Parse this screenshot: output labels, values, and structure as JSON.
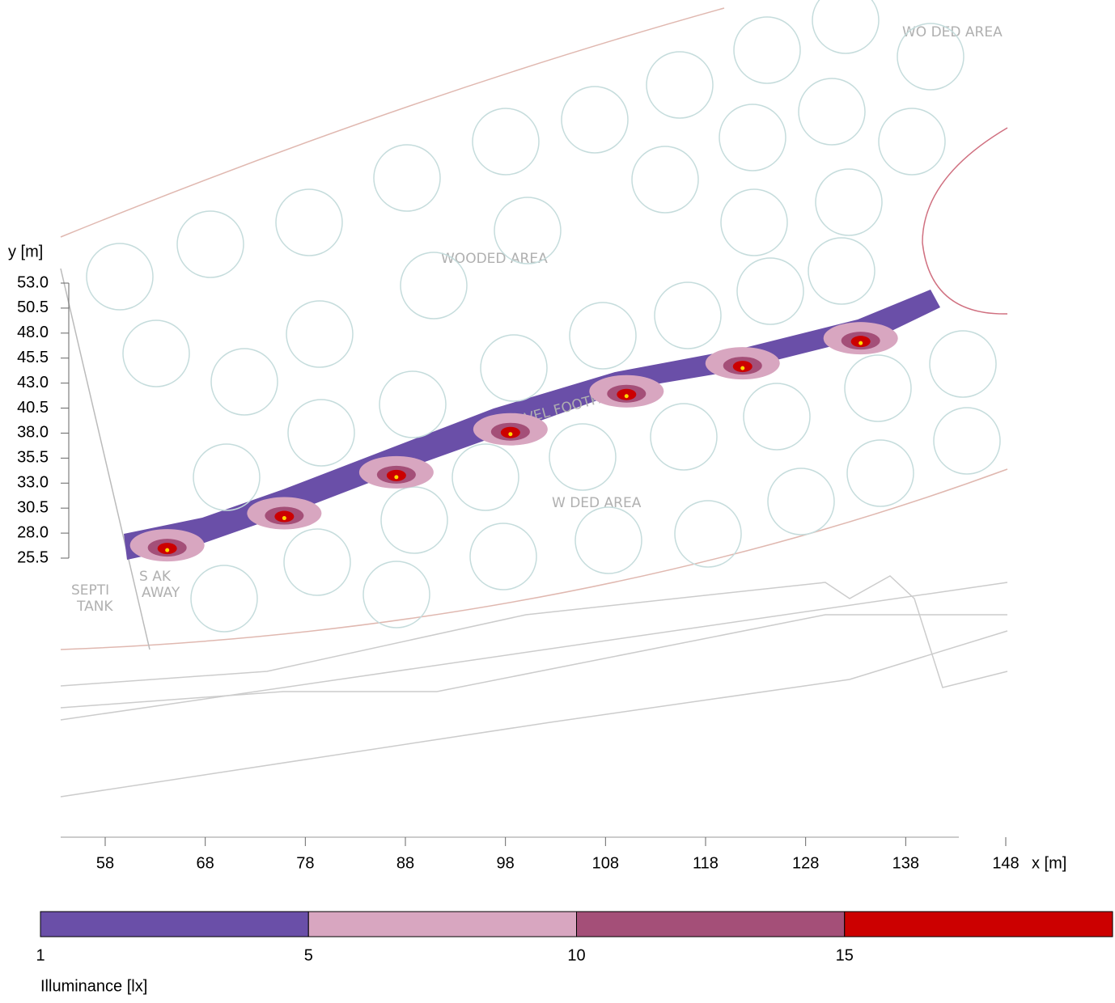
{
  "chart_data": {
    "type": "illuminance-plan",
    "x_label": "x [m]",
    "y_label": "y [m]",
    "xlim": [
      53.5,
      148
    ],
    "ylim": [
      25.5,
      53
    ],
    "xticks": [
      58,
      68,
      78,
      88,
      98,
      108,
      118,
      128,
      138,
      148
    ],
    "yticks": [
      {
        "value": 53,
        "label": "53.0"
      },
      {
        "value": 50.5,
        "label": "50.5"
      },
      {
        "value": 48,
        "label": "48.0"
      },
      {
        "value": 45.5,
        "label": "45.5"
      },
      {
        "value": 43,
        "label": "43.0"
      },
      {
        "value": 40.5,
        "label": "40.5"
      },
      {
        "value": 38,
        "label": "38.0"
      },
      {
        "value": 35.5,
        "label": "35.5"
      },
      {
        "value": 33,
        "label": "33.0"
      },
      {
        "value": 30.5,
        "label": "30.5"
      },
      {
        "value": 28,
        "label": "28.0"
      },
      {
        "value": 25.5,
        "label": "25.5"
      }
    ],
    "luminaires": {
      "x": [
        64.2,
        75.9,
        87.1,
        98.5,
        110.1,
        121.7,
        133.5
      ],
      "y": [
        26.3,
        29.5,
        33.6,
        37.9,
        41.7,
        44.5,
        47.0
      ]
    },
    "map_labels": [
      "WOODED AREA",
      "WO DED AREA",
      "W DED AREA",
      "GRAVEL FOOTPATH",
      "SEPTI",
      "TANK",
      "S AK",
      "AWAY"
    ],
    "legend": {
      "title": "Illuminance [lx]",
      "levels": [
        1,
        5,
        10,
        15
      ],
      "colors": [
        "#6a4fa8",
        "#d8a6c0",
        "#a44f78",
        "#cc0000"
      ]
    }
  }
}
